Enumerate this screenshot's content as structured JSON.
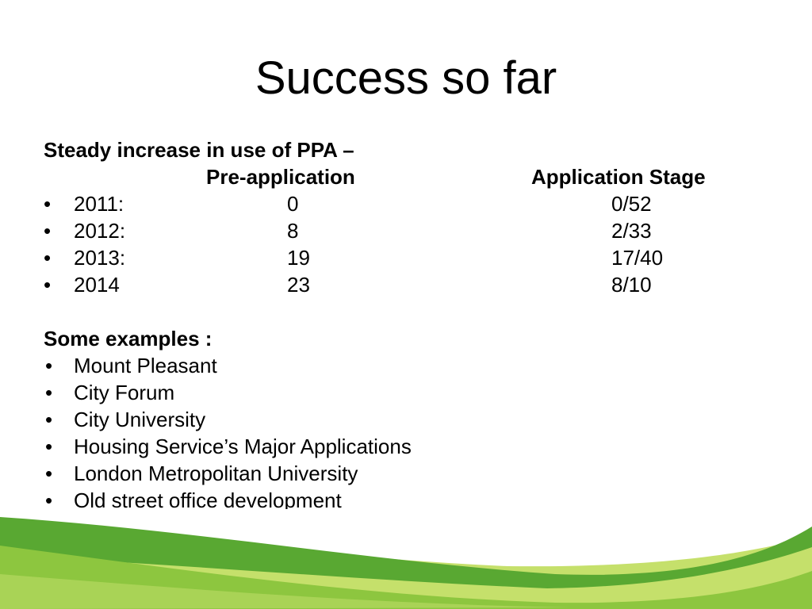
{
  "slide": {
    "title": "Success so far",
    "intro": "Steady increase in use of PPA –",
    "headers": {
      "pre_application": "Pre-application",
      "application_stage": "Application Stage"
    },
    "rows": [
      {
        "bullet": "•",
        "year": "2011:",
        "pre": "0",
        "app": "0/52"
      },
      {
        "bullet": "•",
        "year": "2012:",
        "pre": "8",
        "app": "2/33"
      },
      {
        "bullet": "•",
        "year": "2013:",
        "pre": "19",
        "app": "17/40"
      },
      {
        "bullet": "•",
        "year": "2014",
        "pre": "23",
        "app": "8/10"
      }
    ],
    "examples_heading": "Some examples :",
    "examples": [
      {
        "bullet": "•",
        "label": "Mount Pleasant"
      },
      {
        "bullet": "•",
        "label": "City Forum"
      },
      {
        "bullet": "•",
        "label": "City University"
      },
      {
        "bullet": "•",
        "label": "Housing Service’s Major Applications"
      },
      {
        "bullet": "•",
        "label": "London Metropolitan University"
      },
      {
        "bullet": "•",
        "label": "Old street office development"
      }
    ]
  },
  "colors": {
    "background": "#ffffff",
    "text": "#000000",
    "swoosh_dark_green": "#59a832",
    "swoosh_light_green": "#8dc63f",
    "swoosh_lime": "#c5e06b"
  }
}
